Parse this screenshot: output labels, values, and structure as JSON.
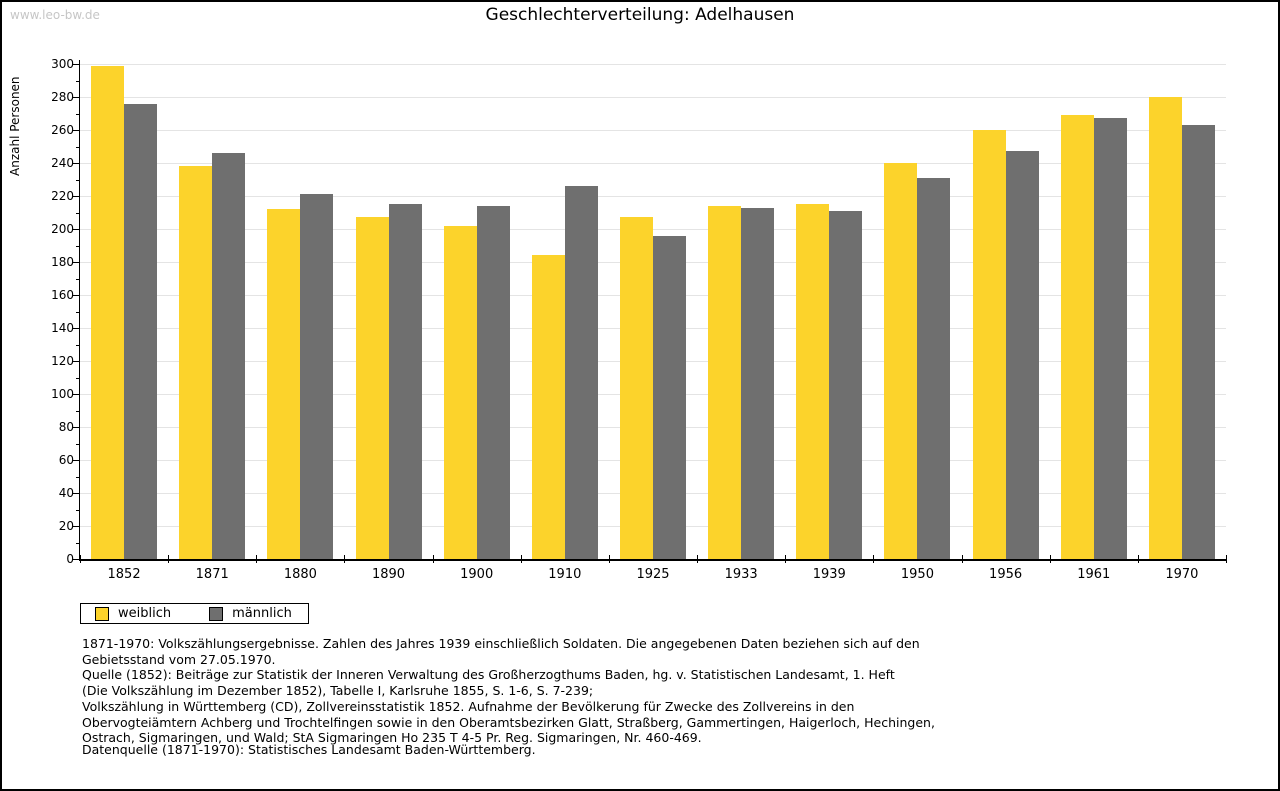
{
  "watermark": "www.leo-bw.de",
  "title": "Geschlechterverteilung: Adelhausen",
  "chart_data": {
    "type": "bar",
    "title": "Geschlechterverteilung: Adelhausen",
    "ylabel": "Anzahl Personen",
    "xlabel": "",
    "ylim": [
      0,
      300
    ],
    "ytick_step": 20,
    "ytick_minor_step": 10,
    "grid": true,
    "legend_position": "bottom-left",
    "categories": [
      "1852",
      "1871",
      "1880",
      "1890",
      "1900",
      "1910",
      "1925",
      "1933",
      "1939",
      "1950",
      "1956",
      "1961",
      "1970"
    ],
    "series": [
      {
        "name": "weiblich",
        "color": "#fcd32b",
        "values": [
          299,
          238,
          212,
          207,
          202,
          184,
          207,
          214,
          215,
          240,
          260,
          269,
          280
        ]
      },
      {
        "name": "männlich",
        "color": "#6f6f6f",
        "values": [
          276,
          246,
          221,
          215,
          214,
          226,
          196,
          213,
          211,
          231,
          247,
          267,
          263
        ]
      }
    ]
  },
  "notes_lines": [
    "1871-1970: Volkszählungsergebnisse. Zahlen des Jahres 1939 einschließlich Soldaten. Die angegebenen Daten beziehen sich auf den",
    "Gebietsstand vom 27.05.1970.",
    "Quelle (1852): Beiträge zur Statistik der Inneren Verwaltung des Großherzogthums Baden, hg. v. Statistischen Landesamt, 1. Heft",
    "(Die Volkszählung im Dezember 1852), Tabelle I, Karlsruhe 1855, S. 1-6, S. 7-239;",
    "Volkszählung in Württemberg (CD), Zollvereinsstatistik 1852. Aufnahme der Bevölkerung für Zwecke des Zollvereins in den",
    "Obervogteiämtern Achberg und Trochtelfingen sowie in den Oberamtsbezirken Glatt, Straßberg, Gammertingen, Haigerloch, Hechingen,",
    "Ostrach, Sigmaringen, und Wald; StA Sigmaringen Ho 235 T 4-5 Pr. Reg. Sigmaringen, Nr. 460-469."
  ],
  "datenquelle": "Datenquelle (1871-1970): Statistisches Landesamt Baden-Württemberg.",
  "colors": {
    "gridline": "#e4e4e4",
    "axis": "#000000",
    "watermark_text": "#c6c6c6"
  }
}
